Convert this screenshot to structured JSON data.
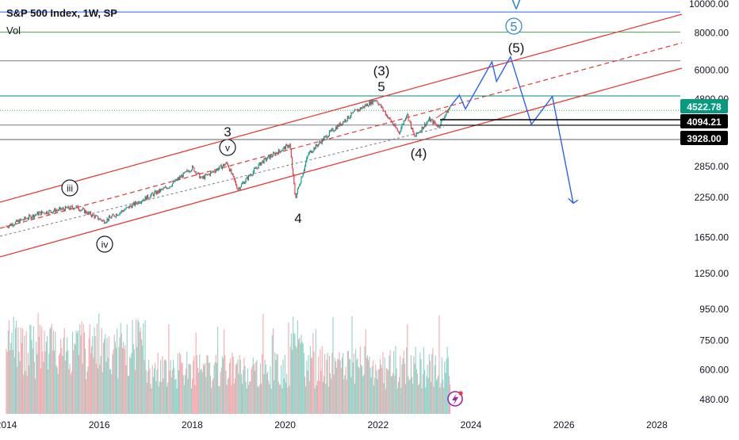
{
  "header": {
    "title": "S&P 500 Index, 1W, SP",
    "volume_label": "Vol"
  },
  "chart_data": {
    "type": "candlestick",
    "symbol": "S&P 500 Index",
    "interval": "1W",
    "exchange": "SP",
    "price_scale": "log",
    "price_axis_ticks": [
      "10000.00",
      "8000.00",
      "6000.00",
      "4800.00",
      "2850.00",
      "2250.00",
      "1650.00",
      "1250.00"
    ],
    "volume_axis_ticks": [
      "950.00",
      "750.00",
      "600.00",
      "480.00"
    ],
    "time_axis_ticks": [
      "2014",
      "2016",
      "2018",
      "2020",
      "2022",
      "2024",
      "2026",
      "2028"
    ],
    "price_labels": [
      {
        "text": "4522.78",
        "kind": "last",
        "color": "#089981"
      },
      {
        "text": "4094.21",
        "kind": "level",
        "color": "#000000"
      },
      {
        "text": "3928.00",
        "kind": "level",
        "color": "#000000"
      }
    ],
    "price_history_approx": [
      {
        "date": "2014.0",
        "close": 1800
      },
      {
        "date": "2014.7",
        "close": 1990
      },
      {
        "date": "2015.5",
        "close": 2090
      },
      {
        "date": "2016.1",
        "close": 1870
      },
      {
        "date": "2016.9",
        "close": 2200
      },
      {
        "date": "2017.5",
        "close": 2450
      },
      {
        "date": "2018.0",
        "close": 2830
      },
      {
        "date": "2018.2",
        "close": 2600
      },
      {
        "date": "2018.75",
        "close": 2930
      },
      {
        "date": "2018.98",
        "close": 2400
      },
      {
        "date": "2019.5",
        "close": 2960
      },
      {
        "date": "2020.1",
        "close": 3380
      },
      {
        "date": "2020.22",
        "close": 2240
      },
      {
        "date": "2020.5",
        "close": 3150
      },
      {
        "date": "2021.0",
        "close": 3750
      },
      {
        "date": "2021.5",
        "close": 4350
      },
      {
        "date": "2021.95",
        "close": 4790
      },
      {
        "date": "2022.45",
        "close": 3700
      },
      {
        "date": "2022.62",
        "close": 4300
      },
      {
        "date": "2022.78",
        "close": 3580
      },
      {
        "date": "2023.1",
        "close": 4100
      },
      {
        "date": "2023.3",
        "close": 3900
      },
      {
        "date": "2023.55",
        "close": 4522.78
      }
    ],
    "wave_labels": [
      "iii",
      "iv",
      "v",
      "3",
      "4",
      "(3)",
      "5",
      "(4)",
      "(5)",
      "5",
      "V"
    ],
    "projection_path": [
      {
        "date": "2023.55",
        "price": 4522.78
      },
      {
        "date": "2023.75",
        "price": 4950
      },
      {
        "date": "2023.88",
        "price": 4450
      },
      {
        "date": "2024.45",
        "price": 6400
      },
      {
        "date": "2024.55",
        "price": 5500
      },
      {
        "date": "2024.85",
        "price": 6650
      },
      {
        "date": "2025.3",
        "price": 3950
      },
      {
        "date": "2025.75",
        "price": 4900
      },
      {
        "date": "2026.2",
        "price": 2150
      }
    ],
    "horizontal_levels": [
      {
        "price": 9400,
        "color": "#2962ff"
      },
      {
        "price": 8050,
        "color": "#4caf50"
      },
      {
        "price": 6450,
        "color": "#787b86"
      },
      {
        "price": 4920,
        "color": "#00897b"
      },
      {
        "price": 4400,
        "color": "#4caf50"
      },
      {
        "price": 3928,
        "color": "#787b86"
      }
    ],
    "channel_color": "#e53935",
    "projection_color": "#2962ff",
    "grid": false
  }
}
